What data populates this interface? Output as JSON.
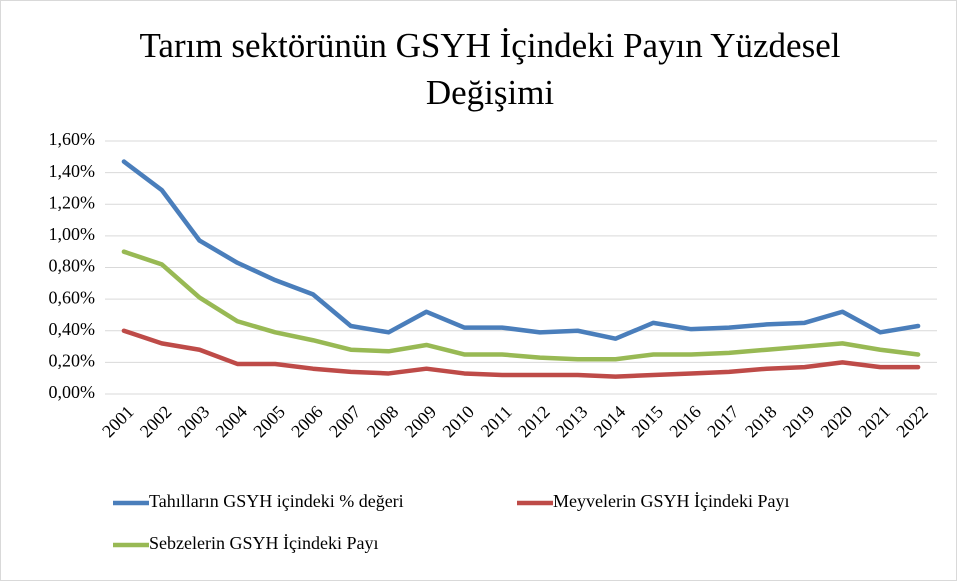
{
  "chart_data": {
    "type": "line",
    "title": "Tarım sektörünün GSYH İçindeki Payın Yüzdesel Değişimi",
    "categories": [
      "2001",
      "2002",
      "2003",
      "2004",
      "2005",
      "2006",
      "2007",
      "2008",
      "2009",
      "2010",
      "2011",
      "2012",
      "2013",
      "2014",
      "2015",
      "2016",
      "2017",
      "2018",
      "2019",
      "2020",
      "2021",
      "2022"
    ],
    "series": [
      {
        "name": "Tahılların GSYH içindeki % değeri",
        "color": "#4a7ebb",
        "values": [
          1.47,
          1.29,
          0.97,
          0.83,
          0.72,
          0.63,
          0.43,
          0.39,
          0.52,
          0.42,
          0.42,
          0.39,
          0.4,
          0.35,
          0.45,
          0.41,
          0.42,
          0.44,
          0.45,
          0.52,
          0.39,
          0.43
        ]
      },
      {
        "name": "Meyvelerin GSYH İçindeki Payı",
        "color": "#be4b48",
        "values": [
          0.4,
          0.32,
          0.28,
          0.19,
          0.19,
          0.16,
          0.14,
          0.13,
          0.16,
          0.13,
          0.12,
          0.12,
          0.12,
          0.11,
          0.12,
          0.13,
          0.14,
          0.16,
          0.17,
          0.2,
          0.17,
          0.17
        ]
      },
      {
        "name": "Sebzelerin GSYH İçindeki Payı",
        "color": "#98b954",
        "values": [
          0.9,
          0.82,
          0.61,
          0.46,
          0.39,
          0.34,
          0.28,
          0.27,
          0.31,
          0.25,
          0.25,
          0.23,
          0.22,
          0.22,
          0.25,
          0.25,
          0.26,
          0.28,
          0.3,
          0.32,
          0.28,
          0.25
        ]
      }
    ],
    "ylim": [
      0,
      1.6
    ],
    "yticks": [
      {
        "value": 0,
        "label": "0,00%"
      },
      {
        "value": 0.2,
        "label": "0,20%"
      },
      {
        "value": 0.4,
        "label": "0,40%"
      },
      {
        "value": 0.6,
        "label": "0,60%"
      },
      {
        "value": 0.8,
        "label": "0,80%"
      },
      {
        "value": 1.0,
        "label": "1,00%"
      },
      {
        "value": 1.2,
        "label": "1,20%"
      },
      {
        "value": 1.4,
        "label": "1,40%"
      },
      {
        "value": 1.6,
        "label": "1,60%"
      }
    ],
    "grid": true,
    "legend": "bottom"
  }
}
